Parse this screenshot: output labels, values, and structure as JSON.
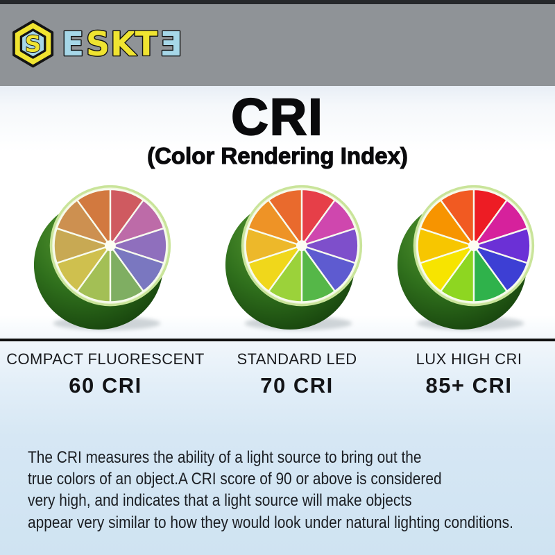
{
  "logo": {
    "badge_letter": "S",
    "badge_colors": {
      "outline": "#141414",
      "hexagon": "#f0e431",
      "inner": "#a6d7e8"
    },
    "letters": [
      {
        "char": "E",
        "color": "#a6d7e8"
      },
      {
        "char": "S",
        "color": "#f0e431"
      },
      {
        "char": "K",
        "color": "#f0e431"
      },
      {
        "char": "T",
        "color": "#f0e431"
      },
      {
        "char": "Ǝ",
        "color": "#a6d7e8"
      }
    ]
  },
  "title": {
    "main": "CRI",
    "subtitle": "(Color Rendering Index)"
  },
  "comparison": {
    "items": [
      {
        "name": "COMPACT FLUORESCENT",
        "value": "60 CRI",
        "segments": [
          "#cf5a60",
          "#bd6ba8",
          "#8f6fbd",
          "#7a77c0",
          "#7fae62",
          "#a3bf55",
          "#cfc04e",
          "#c8a953",
          "#cd9050",
          "#d2793f"
        ]
      },
      {
        "name": "STANDARD LED",
        "value": "70 CRI",
        "segments": [
          "#e63f48",
          "#cf47ae",
          "#7e4fcb",
          "#5e5bd0",
          "#55b748",
          "#9bd23a",
          "#f0d71b",
          "#edb82a",
          "#ee9326",
          "#e96a2d"
        ]
      },
      {
        "name": "LUX HIGH CRI",
        "value": "85+ CRI",
        "segments": [
          "#ed1c24",
          "#d6219c",
          "#6b30d6",
          "#3d3fd4",
          "#2fb24b",
          "#8ed621",
          "#f7e400",
          "#f7c600",
          "#f79400",
          "#f15a22"
        ]
      }
    ]
  },
  "description": {
    "lines": [
      "The CRI measures the ability of a light source to bring out the",
      "true colors of an object.A CRI score of 90 or above is considered",
      "very high, and indicates that a light source will make objects",
      "appear very similar to how they would look under natural lighting conditions."
    ]
  },
  "colors": {
    "banner": "#8f9397",
    "divider": "#101010",
    "bottom_background": "#cfe3f2",
    "rind_green": "#2f6f1c"
  }
}
